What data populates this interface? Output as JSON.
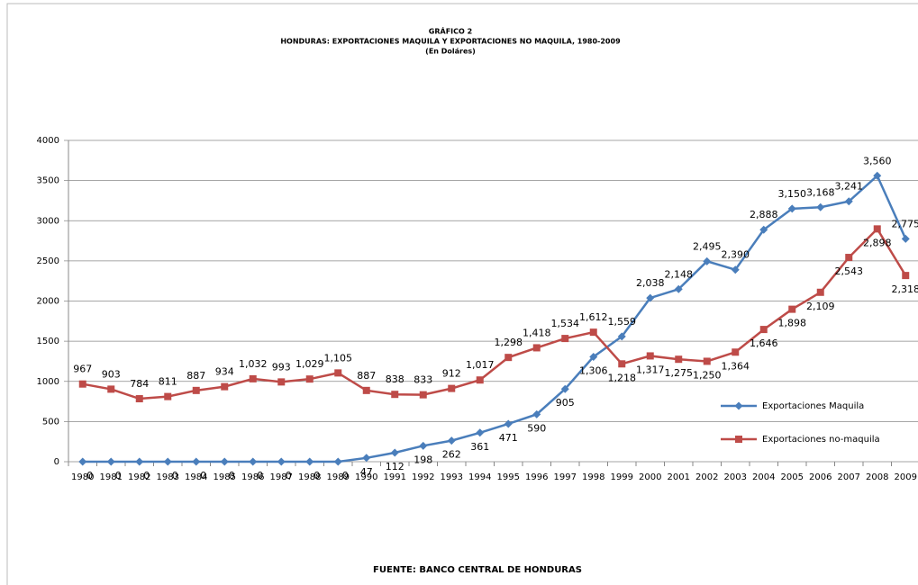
{
  "chart_data": {
    "type": "line",
    "title": "GRÁFICO 2",
    "subtitle": "HONDURAS: EXPORTACIONES  MAQUILA Y EXPORTACIONES NO MAQUILA, 1980-2009",
    "units": "(En Doláres)",
    "source": "FUENTE: BANCO CENTRAL DE HONDURAS",
    "categories": [
      "1980",
      "1981",
      "1982",
      "1983",
      "1984",
      "1985",
      "1986",
      "1987",
      "1988",
      "1989",
      "1990",
      "1991",
      "1992",
      "1993",
      "1994",
      "1995",
      "1996",
      "1997",
      "1998",
      "1999",
      "2000",
      "2001",
      "2002",
      "2003",
      "2004",
      "2005",
      "2006",
      "2007",
      "2008",
      "2009"
    ],
    "series": [
      {
        "name": "Exportaciones Maquila",
        "color": "#4a7ebb",
        "marker": "diamond",
        "values": [
          0,
          0,
          0,
          0,
          0,
          0,
          0,
          0,
          0,
          0,
          47,
          112,
          198,
          262,
          361,
          471,
          590,
          905,
          1306,
          1559,
          2038,
          2148,
          2495,
          2390,
          2888,
          3150,
          3168,
          3241,
          3560,
          2775
        ],
        "value_labels": [
          "0",
          "0",
          "0",
          "0",
          "0",
          "0",
          "0",
          "0",
          "0",
          "0",
          "47",
          "112",
          "198",
          "262",
          "361",
          "471",
          "590",
          "905",
          "1,306",
          "1,559",
          "2,038",
          "2,148",
          "2,495",
          "2,390",
          "2,888",
          "3,150",
          "3,168",
          "3,241",
          "3,560",
          "2,775"
        ]
      },
      {
        "name": "Exportaciones no-maquila",
        "color": "#be4b48",
        "marker": "square",
        "values": [
          967,
          903,
          784,
          811,
          887,
          934,
          1032,
          993,
          1029,
          1105,
          887,
          838,
          833,
          912,
          1017,
          1298,
          1418,
          1534,
          1612,
          1218,
          1317,
          1275,
          1250,
          1364,
          1646,
          1898,
          2109,
          2543,
          2898,
          2318
        ],
        "value_labels": [
          "967",
          "903",
          "784",
          "811",
          "887",
          "934",
          "1,032",
          "993",
          "1,029",
          "1,105",
          "887",
          "838",
          "833",
          "912",
          "1,017",
          "1,298",
          "1,418",
          "1,534",
          "1,612",
          "1,218",
          "1,317",
          "1,275",
          "1,250",
          "1,364",
          "1,646",
          "1,898",
          "2,109",
          "2,543",
          "2,898",
          "2,318"
        ]
      }
    ],
    "ylim": [
      0,
      4000
    ],
    "yticks": [
      0,
      500,
      1000,
      1500,
      2000,
      2500,
      3000,
      3500,
      4000
    ],
    "grid": true,
    "legend": "right"
  }
}
